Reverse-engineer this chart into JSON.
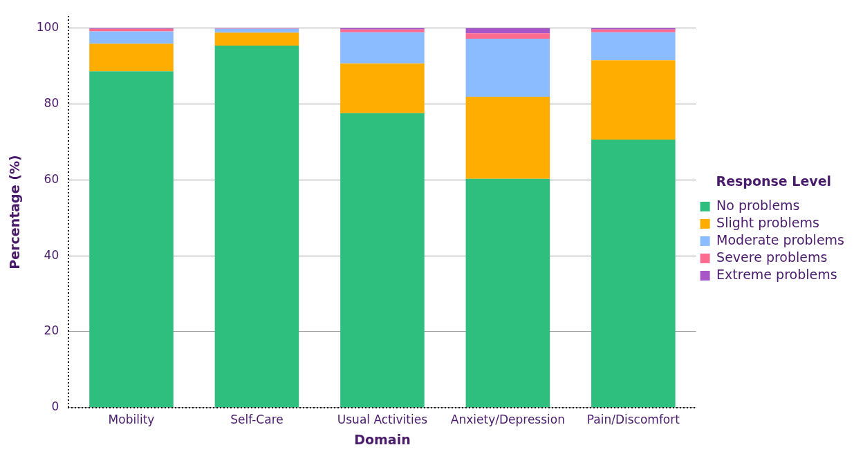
{
  "chart_data": {
    "type": "bar",
    "stacked": true,
    "xlabel": "Domain",
    "ylabel": "Percentage (%)",
    "legend_title": "Response Level",
    "legend": "right",
    "grid": "y",
    "categories": [
      "Mobility",
      "Self-Care",
      "Usual Activities",
      "Anxiety/Depression",
      "Pain/Discomfort"
    ],
    "ylim": [
      0,
      103
    ],
    "yticks": [
      0,
      20,
      40,
      60,
      80,
      100
    ],
    "series": [
      {
        "name": "No problems",
        "color": "#2ebf7f",
        "values": [
          88.6,
          95.4,
          77.6,
          60.3,
          70.6
        ]
      },
      {
        "name": "Slight problems",
        "color": "#ffad00",
        "values": [
          7.3,
          3.4,
          13.1,
          21.6,
          20.9
        ]
      },
      {
        "name": "Moderate problems",
        "color": "#8bbcff",
        "values": [
          3.2,
          1.0,
          8.2,
          15.3,
          7.4
        ]
      },
      {
        "name": "Severe problems",
        "color": "#ff6b8f",
        "values": [
          0.7,
          0.1,
          0.7,
          1.4,
          0.7
        ]
      },
      {
        "name": "Extreme problems",
        "color": "#a855c8",
        "values": [
          0.2,
          0.1,
          0.4,
          1.4,
          0.4
        ]
      }
    ]
  }
}
